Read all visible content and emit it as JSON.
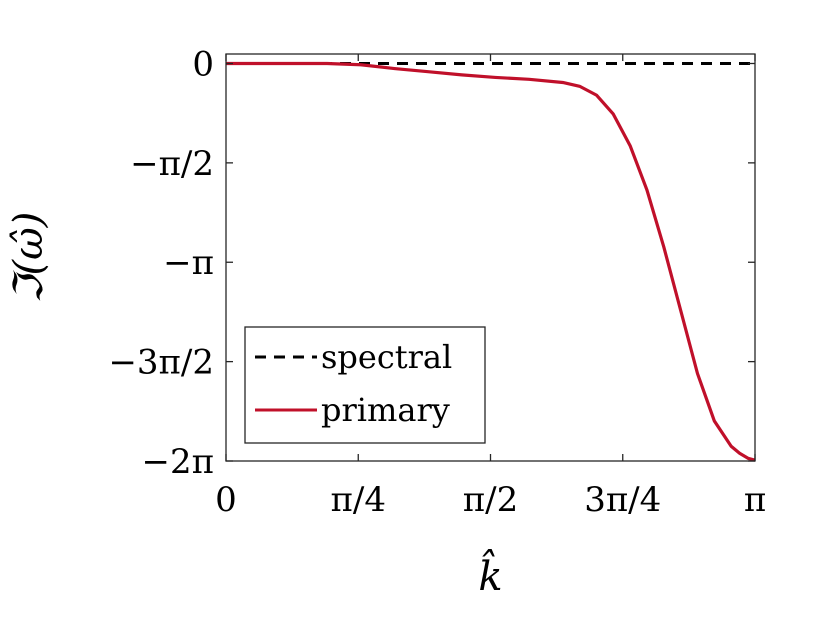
{
  "chart_data": {
    "type": "line",
    "title": "",
    "xlabel": "k̂",
    "ylabel": "ℑ(ω̂)",
    "xlim": [
      0,
      3.14159265
    ],
    "ylim": [
      -6.28318531,
      0.15
    ],
    "x_ticks": [
      {
        "value": 0,
        "label": "0"
      },
      {
        "value": 0.78539816,
        "label": "π/4"
      },
      {
        "value": 1.57079633,
        "label": "π/2"
      },
      {
        "value": 2.35619449,
        "label": "3π/4"
      },
      {
        "value": 3.14159265,
        "label": "π"
      }
    ],
    "y_ticks": [
      {
        "value": 0,
        "label": "0"
      },
      {
        "value": -1.57079633,
        "label": "−π/2"
      },
      {
        "value": -3.14159265,
        "label": "−π"
      },
      {
        "value": -4.71238898,
        "label": "−3π/2"
      },
      {
        "value": -6.28318531,
        "label": "−2π"
      }
    ],
    "grid": false,
    "legend_position": "bottom-left",
    "series": [
      {
        "name": "spectral",
        "color": "#000000",
        "dash": "dashed",
        "x": [
          0,
          3.14159265
        ],
        "y": [
          0,
          0
        ]
      },
      {
        "name": "primary",
        "color": "#c0102a",
        "dash": "solid",
        "x": [
          0,
          0.2,
          0.4,
          0.6,
          0.8,
          1.0,
          1.2,
          1.4,
          1.6,
          1.8,
          2.0,
          2.1,
          2.2,
          2.3,
          2.4,
          2.5,
          2.6,
          2.7,
          2.8,
          2.9,
          3.0,
          3.05,
          3.1,
          3.14159265
        ],
        "y": [
          0,
          0,
          0,
          0,
          -0.02,
          -0.08,
          -0.13,
          -0.18,
          -0.22,
          -0.25,
          -0.3,
          -0.36,
          -0.5,
          -0.8,
          -1.3,
          -2.0,
          -2.9,
          -3.9,
          -4.9,
          -5.65,
          -6.05,
          -6.16,
          -6.24,
          -6.27
        ]
      }
    ]
  }
}
